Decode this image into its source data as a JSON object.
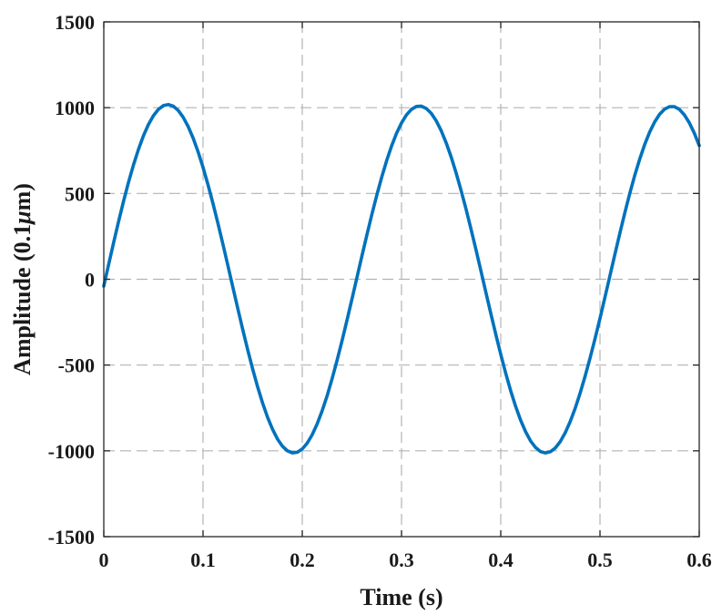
{
  "chart_data": {
    "type": "line",
    "title": "",
    "xlabel": "Time (s)",
    "ylabel_prefix": "Amplitude (0.1",
    "ylabel_unit_symbol": "μ",
    "ylabel_suffix": "m)",
    "xlim": [
      0,
      0.6
    ],
    "ylim": [
      -1500,
      1500
    ],
    "xticks": [
      0,
      0.1,
      0.2,
      0.3,
      0.4,
      0.5,
      0.6
    ],
    "xtick_labels": [
      "0",
      "0.1",
      "0.2",
      "0.3",
      "0.4",
      "0.5",
      "0.6"
    ],
    "yticks": [
      -1500,
      -1000,
      -500,
      0,
      500,
      1000,
      1500
    ],
    "ytick_labels": [
      "-1500",
      "-1000",
      "-500",
      "0",
      "500",
      "1000",
      "1500"
    ],
    "grid": true,
    "series": [
      {
        "color": "#0072BD",
        "x": [
          0.0,
          0.005,
          0.01,
          0.015,
          0.02,
          0.025,
          0.03,
          0.035,
          0.04,
          0.045,
          0.05,
          0.055,
          0.06,
          0.065,
          0.07,
          0.075,
          0.08,
          0.085,
          0.09,
          0.095,
          0.1,
          0.105,
          0.11,
          0.115,
          0.12,
          0.125,
          0.13,
          0.135,
          0.14,
          0.145,
          0.15,
          0.155,
          0.16,
          0.165,
          0.17,
          0.175,
          0.18,
          0.185,
          0.19,
          0.195,
          0.2,
          0.205,
          0.21,
          0.215,
          0.22,
          0.225,
          0.23,
          0.235,
          0.24,
          0.245,
          0.25,
          0.255,
          0.26,
          0.265,
          0.27,
          0.275,
          0.28,
          0.285,
          0.29,
          0.295,
          0.3,
          0.305,
          0.31,
          0.315,
          0.32,
          0.325,
          0.33,
          0.335,
          0.34,
          0.345,
          0.35,
          0.355,
          0.36,
          0.365,
          0.37,
          0.375,
          0.38,
          0.385,
          0.39,
          0.395,
          0.4,
          0.405,
          0.41,
          0.415,
          0.42,
          0.425,
          0.43,
          0.435,
          0.44,
          0.445,
          0.45,
          0.455,
          0.46,
          0.465,
          0.47,
          0.475,
          0.48,
          0.485,
          0.49,
          0.495,
          0.5,
          0.505,
          0.51,
          0.515,
          0.52,
          0.525,
          0.53,
          0.535,
          0.54,
          0.545,
          0.55,
          0.555,
          0.56,
          0.565,
          0.57,
          0.575,
          0.58,
          0.585,
          0.59,
          0.595,
          0.6
        ],
        "y": [
          -40,
          89,
          216,
          339,
          457,
          567,
          668,
          758,
          837,
          902,
          953,
          990,
          1012,
          1018,
          1009,
          984,
          944,
          890,
          823,
          743,
          652,
          551,
          442,
          326,
          205,
          81,
          -45,
          -170,
          -293,
          -411,
          -523,
          -627,
          -721,
          -804,
          -874,
          -931,
          -973,
          -1000,
          -1012,
          -1008,
          -989,
          -955,
          -906,
          -843,
          -767,
          -680,
          -581,
          -474,
          -360,
          -240,
          -117,
          8,
          133,
          256,
          375,
          488,
          594,
          691,
          777,
          851,
          911,
          958,
          990,
          1007,
          1009,
          995,
          967,
          923,
          866,
          795,
          713,
          620,
          518,
          409,
          293,
          173,
          49,
          -76,
          -200,
          -321,
          -438,
          -548,
          -650,
          -741,
          -821,
          -888,
          -942,
          -980,
          -1004,
          -1012,
          -1005,
          -983,
          -946,
          -894,
          -829,
          -752,
          -663,
          -565,
          -459,
          -346,
          -228,
          -105,
          20,
          145,
          268,
          387,
          500,
          605,
          700,
          785,
          857,
          916,
          961,
          991,
          1006,
          1006,
          990,
          958,
          912,
          852,
          779
        ]
      }
    ]
  }
}
